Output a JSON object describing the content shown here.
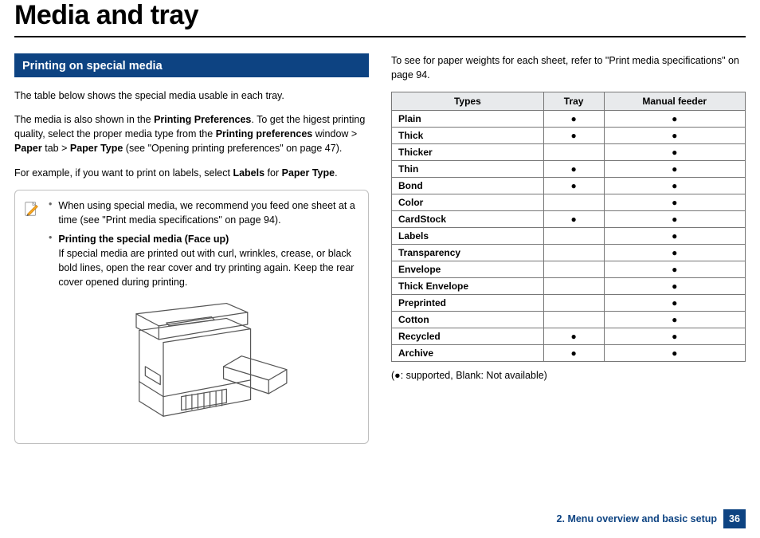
{
  "title": "Media and tray",
  "section_heading": "Printing on special media",
  "left": {
    "p1": "The table below shows the special media usable in each tray.",
    "p2a": "The media is also shown in the ",
    "p2b": "Printing Preferences",
    "p2c": ". To get the higest printing quality, select the proper media type from the ",
    "p2d": "Printing preferences",
    "p2e": " window > ",
    "p2f": "Paper",
    "p2g": " tab > ",
    "p2h": "Paper Type",
    "p2i": " (see \"Opening printing preferences\" on page 47).",
    "p3a": "For example, if you want to print on labels, select ",
    "p3b": "Labels",
    "p3c": " for ",
    "p3d": "Paper Type",
    "p3e": ".",
    "note1": "When using special media, we recommend you feed one sheet at a time (see \"Print media specifications\" on page 94).",
    "note2_title": "Printing the special media (Face up)",
    "note2_body": "If special media are printed out with curl, wrinkles, crease, or black bold lines, open the rear cover and try printing again. Keep the rear cover opened during printing."
  },
  "right": {
    "intro": "To see for paper weights for each sheet, refer to \"Print media specifications\" on page 94.",
    "headers": {
      "c1": "Types",
      "c2": "Tray",
      "c3": "Manual feeder"
    },
    "rows": [
      {
        "t": "Plain",
        "tray": "●",
        "mf": "●"
      },
      {
        "t": "Thick",
        "tray": "●",
        "mf": "●"
      },
      {
        "t": "Thicker",
        "tray": "",
        "mf": "●"
      },
      {
        "t": "Thin",
        "tray": "●",
        "mf": "●"
      },
      {
        "t": "Bond",
        "tray": "●",
        "mf": "●"
      },
      {
        "t": "Color",
        "tray": "",
        "mf": "●"
      },
      {
        "t": "CardStock",
        "tray": "●",
        "mf": "●"
      },
      {
        "t": "Labels",
        "tray": "",
        "mf": "●"
      },
      {
        "t": "Transparency",
        "tray": "",
        "mf": "●"
      },
      {
        "t": "Envelope",
        "tray": "",
        "mf": "●"
      },
      {
        "t": "Thick Envelope",
        "tray": "",
        "mf": "●"
      },
      {
        "t": "Preprinted",
        "tray": "",
        "mf": "●"
      },
      {
        "t": "Cotton",
        "tray": "",
        "mf": "●"
      },
      {
        "t": "Recycled",
        "tray": "●",
        "mf": "●"
      },
      {
        "t": "Archive",
        "tray": "●",
        "mf": "●"
      }
    ],
    "legend": "(●: supported, Blank: Not available)"
  },
  "footer": {
    "chapter": "2. Menu overview and basic setup",
    "page": "36"
  }
}
